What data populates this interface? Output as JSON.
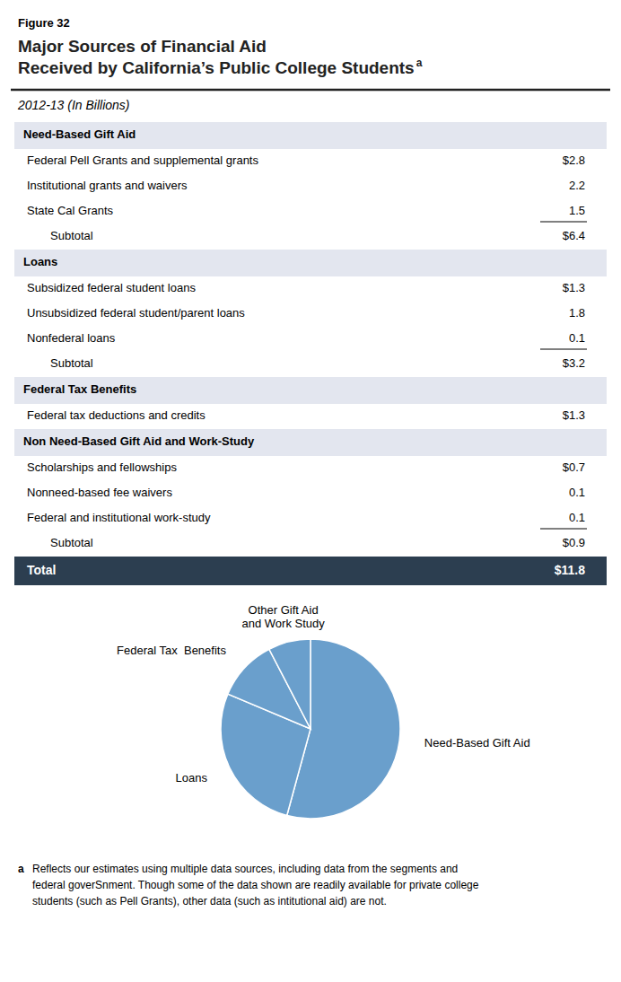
{
  "chart_data": {
    "type": "pie",
    "figure_label": "Figure 32",
    "title": [
      "Major Sources of Financial Aid",
      "Received by California’s Public College Students"
    ],
    "title_marker": "a",
    "subtitle": "2012-13 (In Billions)",
    "table": [
      {
        "header": "Need-Based Gift Aid",
        "rows": [
          {
            "label": "Federal Pell Grants and supplemental grants",
            "value": "$2.8"
          },
          {
            "label": "Institutional grants and waivers",
            "value": "2.2"
          },
          {
            "label": "State Cal Grants",
            "value": "1.5"
          }
        ],
        "subtotal": {
          "label": "Subtotal",
          "value": "$6.4"
        }
      },
      {
        "header": "Loans",
        "rows": [
          {
            "label": "Subsidized federal student loans",
            "value": "$1.3"
          },
          {
            "label": "Unsubsidized federal student/parent loans",
            "value": "1.8"
          },
          {
            "label": "Nonfederal loans",
            "value": "0.1"
          }
        ],
        "subtotal": {
          "label": "Subtotal",
          "value": "$3.2"
        }
      },
      {
        "header": "Federal Tax Benefits",
        "rows": [
          {
            "label": "Federal tax deductions and credits",
            "value": "$1.3"
          }
        ]
      },
      {
        "header": "Non Need-Based Gift Aid and Work-Study",
        "rows": [
          {
            "label": "Scholarships and fellowships",
            "value": "$0.7"
          },
          {
            "label": "Nonneed-based fee waivers",
            "value": "0.1"
          },
          {
            "label": "Federal and institutional work-study",
            "value": "0.1"
          }
        ],
        "subtotal": {
          "label": "Subtotal",
          "value": "$0.9"
        }
      }
    ],
    "total": {
      "label": "Total",
      "value": "$11.8"
    },
    "categories": [
      "Need-Based Gift Aid",
      "Loans",
      "Federal Tax  Benefits",
      "Other Gift Aid\nand Work Study"
    ],
    "values": [
      6.4,
      3.2,
      1.3,
      0.9
    ],
    "color": "#6a9fcc",
    "footnote_marker": "a",
    "footnote": [
      "Reflects our estimates using multiple data sources, including data from the segments and",
      "federal goverSnment. Though some of the data shown are readily available for private college",
      "students (such as Pell Grants), other data (such as intitutional aid) are not."
    ]
  }
}
